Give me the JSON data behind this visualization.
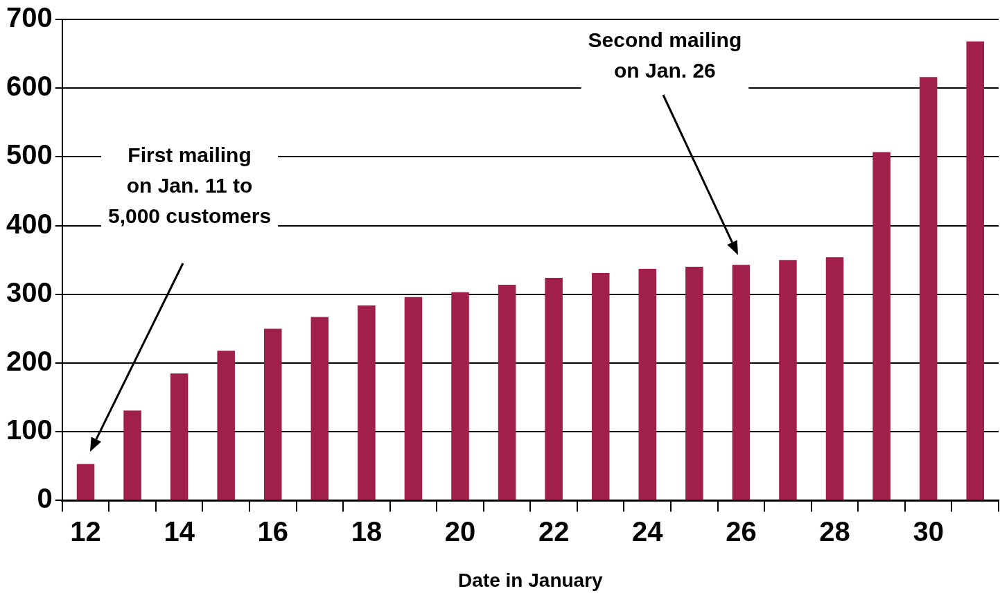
{
  "chart_data": {
    "type": "bar",
    "xlabel": "Date in January",
    "categories": [
      "12",
      null,
      "14",
      null,
      "16",
      null,
      "18",
      null,
      "20",
      null,
      "22",
      null,
      "24",
      null,
      "26",
      null,
      "28",
      null,
      "30",
      null
    ],
    "values": [
      53,
      131,
      185,
      218,
      250,
      267,
      284,
      296,
      303,
      314,
      324,
      331,
      337,
      340,
      343,
      350,
      354,
      507,
      616,
      668
    ],
    "color": "#a0204a",
    "ylim": [
      0,
      700
    ],
    "yticks": [
      0,
      100,
      200,
      300,
      400,
      500,
      600,
      700
    ],
    "grid": "y",
    "legend": false,
    "annotations": [
      "First mailing\non Jan. 11 to\n5,000 customers",
      "Second mailing\non Jan. 26"
    ]
  }
}
